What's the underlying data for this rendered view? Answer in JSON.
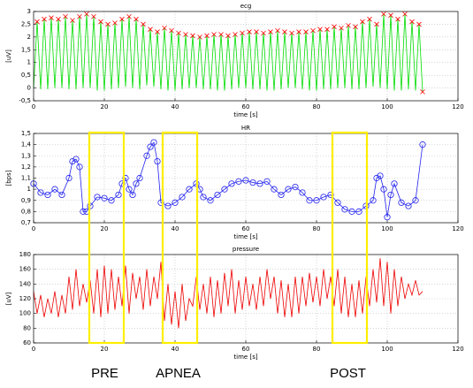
{
  "chart_data": [
    {
      "type": "line",
      "title": "ecg",
      "xlabel": "time [s]",
      "ylabel": "[uV]",
      "grid": true,
      "xlim": [
        0,
        120
      ],
      "xticks": [
        0,
        20,
        40,
        60,
        80,
        100,
        120
      ],
      "ylim": [
        -0.5,
        3
      ],
      "yticks": [
        {
          "value": -0.5,
          "label": "-0,5"
        },
        0,
        {
          "value": 0.5,
          "label": "0,5"
        },
        1,
        {
          "value": 1.5,
          "label": "1,5"
        },
        2,
        {
          "value": 2.5,
          "label": "2,5"
        },
        3
      ],
      "series": [
        {
          "color": "#00dd00",
          "x": [
            0,
            1,
            2,
            3,
            4,
            5,
            6,
            7,
            8,
            9,
            10,
            11,
            12,
            13,
            14,
            15,
            16,
            17,
            18,
            19,
            20,
            21,
            22,
            23,
            24,
            25,
            26,
            27,
            28,
            29,
            30,
            31,
            32,
            33,
            34,
            35,
            36,
            37,
            38,
            39,
            40,
            41,
            42,
            43,
            44,
            45,
            46,
            47,
            48,
            49,
            50,
            51,
            52,
            53,
            54,
            55,
            56,
            57,
            58,
            59,
            60,
            61,
            62,
            63,
            64,
            65,
            66,
            67,
            68,
            69,
            70,
            71,
            72,
            73,
            74,
            75,
            76,
            77,
            78,
            79,
            80,
            81,
            82,
            83,
            84,
            85,
            86,
            87,
            88,
            89,
            90,
            91,
            92,
            93,
            94,
            95,
            96,
            97,
            98,
            99,
            100,
            101,
            102,
            103,
            104,
            105,
            106,
            107,
            108,
            109,
            110
          ],
          "values": [
            0,
            2.6,
            -0.05,
            2.7,
            -0.05,
            2.75,
            0,
            2.7,
            0,
            2.8,
            -0.05,
            2.65,
            -0.05,
            2.8,
            0,
            2.9,
            0,
            2.8,
            -0.1,
            2.6,
            -0.1,
            2.5,
            -0.05,
            2.55,
            0,
            2.7,
            0.05,
            2.8,
            0,
            2.7,
            -0.05,
            2.5,
            0.1,
            2.3,
            0.05,
            2.2,
            -0.05,
            2.35,
            -0.1,
            2.25,
            -0.1,
            2.15,
            -0.05,
            2.1,
            0,
            2.05,
            0,
            2.0,
            -0.05,
            2.05,
            -0.05,
            2.1,
            -0.1,
            2.1,
            -0.1,
            2.05,
            -0.05,
            2.1,
            0,
            2.15,
            0,
            2.2,
            -0.05,
            2.2,
            -0.05,
            2.15,
            -0.1,
            2.2,
            -0.1,
            2.25,
            -0.05,
            2.2,
            0,
            2.15,
            0,
            2.2,
            -0.05,
            2.2,
            -0.1,
            2.25,
            -0.1,
            2.3,
            -0.05,
            2.3,
            -0.05,
            2.4,
            0,
            2.35,
            0,
            2.45,
            -0.05,
            2.4,
            -0.05,
            2.6,
            0,
            2.7,
            0.05,
            2.5,
            0,
            2.9,
            -0.05,
            2.85,
            -0.1,
            2.7,
            -0.1,
            2.9,
            -0.05,
            2.6,
            -0.1,
            2.5,
            -0.15
          ]
        },
        {
          "color": "#ff0000",
          "marker": "x",
          "line": false,
          "x": [
            1,
            3,
            5,
            7,
            9,
            11,
            13,
            15,
            17,
            19,
            21,
            23,
            25,
            27,
            29,
            31,
            33,
            35,
            37,
            39,
            41,
            43,
            45,
            47,
            49,
            51,
            53,
            55,
            57,
            59,
            61,
            63,
            65,
            67,
            69,
            71,
            73,
            75,
            77,
            79,
            81,
            83,
            85,
            87,
            89,
            91,
            93,
            95,
            97,
            99,
            101,
            103,
            105,
            107,
            109,
            110
          ],
          "values": [
            2.6,
            2.7,
            2.75,
            2.7,
            2.8,
            2.65,
            2.8,
            2.9,
            2.8,
            2.6,
            2.5,
            2.55,
            2.7,
            2.8,
            2.7,
            2.5,
            2.3,
            2.2,
            2.35,
            2.25,
            2.15,
            2.1,
            2.05,
            2.0,
            2.05,
            2.1,
            2.1,
            2.05,
            2.1,
            2.15,
            2.2,
            2.2,
            2.15,
            2.2,
            2.25,
            2.2,
            2.15,
            2.2,
            2.2,
            2.25,
            2.3,
            2.3,
            2.4,
            2.35,
            2.45,
            2.4,
            2.6,
            2.7,
            2.5,
            2.9,
            2.85,
            2.7,
            2.9,
            2.6,
            2.5,
            -0.15
          ]
        }
      ]
    },
    {
      "type": "line",
      "title": "HR",
      "xlabel": "time [s]",
      "ylabel": "[bps]",
      "grid": true,
      "xlim": [
        0,
        120
      ],
      "xticks": [
        0,
        20,
        40,
        60,
        80,
        100,
        120
      ],
      "ylim": [
        0.7,
        1.5
      ],
      "yticks": [
        {
          "value": 0.7,
          "label": "0,7"
        },
        {
          "value": 0.8,
          "label": "0,8"
        },
        {
          "value": 0.9,
          "label": "0,9"
        },
        1,
        {
          "value": 1.1,
          "label": "1,1"
        },
        {
          "value": 1.2,
          "label": "1,2"
        },
        {
          "value": 1.3,
          "label": "1,3"
        },
        {
          "value": 1.4,
          "label": "1,4"
        },
        {
          "value": 1.5,
          "label": "1,5"
        }
      ],
      "series": [
        {
          "color": "#2222ee",
          "marker": "o",
          "x": [
            0,
            2,
            4,
            6,
            8,
            10,
            11,
            12,
            13,
            14,
            15,
            16,
            18,
            20,
            22,
            24,
            25,
            26,
            27,
            28,
            29,
            30,
            32,
            33,
            34,
            35,
            36,
            38,
            40,
            42,
            44,
            46,
            47,
            48,
            50,
            52,
            54,
            56,
            58,
            60,
            62,
            64,
            66,
            68,
            70,
            72,
            74,
            76,
            78,
            80,
            82,
            84,
            86,
            88,
            90,
            92,
            94,
            96,
            97,
            98,
            99,
            100,
            101,
            102,
            104,
            106,
            108,
            110
          ],
          "values": [
            1.05,
            0.97,
            0.95,
            1.0,
            0.95,
            1.1,
            1.25,
            1.27,
            1.2,
            0.8,
            0.8,
            0.85,
            0.93,
            0.92,
            0.9,
            0.95,
            1.05,
            1.1,
            1.0,
            0.95,
            1.05,
            1.1,
            1.3,
            1.38,
            1.42,
            1.25,
            0.88,
            0.85,
            0.88,
            0.93,
            1.0,
            1.05,
            1.0,
            0.93,
            0.9,
            0.95,
            1.0,
            1.05,
            1.07,
            1.08,
            1.06,
            1.05,
            1.07,
            1.0,
            0.95,
            1.0,
            1.02,
            0.97,
            0.9,
            0.9,
            0.93,
            0.95,
            0.88,
            0.82,
            0.8,
            0.8,
            0.85,
            0.9,
            1.1,
            1.12,
            1.0,
            0.75,
            0.95,
            1.05,
            0.88,
            0.85,
            0.9,
            1.4
          ]
        }
      ]
    },
    {
      "type": "line",
      "title": "pressure",
      "xlabel": "time [s]",
      "ylabel": "[uV]",
      "grid": true,
      "xlim": [
        0,
        120
      ],
      "xticks": [
        0,
        20,
        40,
        60,
        80,
        100,
        120
      ],
      "ylim": [
        60,
        180
      ],
      "yticks": [
        60,
        80,
        100,
        120,
        140,
        160,
        180
      ],
      "series": [
        {
          "color": "#ee0000",
          "x": [
            0,
            1,
            2,
            3,
            4,
            5,
            6,
            7,
            8,
            9,
            10,
            11,
            12,
            13,
            14,
            15,
            16,
            17,
            18,
            19,
            20,
            21,
            22,
            23,
            24,
            25,
            26,
            27,
            28,
            29,
            30,
            31,
            32,
            33,
            34,
            35,
            36,
            37,
            38,
            39,
            40,
            41,
            42,
            43,
            44,
            45,
            46,
            47,
            48,
            49,
            50,
            51,
            52,
            53,
            54,
            55,
            56,
            57,
            58,
            59,
            60,
            61,
            62,
            63,
            64,
            65,
            66,
            67,
            68,
            69,
            70,
            71,
            72,
            73,
            74,
            75,
            76,
            77,
            78,
            79,
            80,
            81,
            82,
            83,
            84,
            85,
            86,
            87,
            88,
            89,
            90,
            91,
            92,
            93,
            94,
            95,
            96,
            97,
            98,
            99,
            100,
            101,
            102,
            103,
            104,
            105,
            106,
            107,
            108,
            109,
            110
          ],
          "values": [
            130,
            100,
            125,
            95,
            120,
            100,
            130,
            95,
            125,
            100,
            150,
            105,
            160,
            110,
            140,
            115,
            145,
            100,
            160,
            95,
            165,
            100,
            160,
            105,
            150,
            110,
            165,
            100,
            155,
            120,
            150,
            105,
            160,
            110,
            150,
            120,
            170,
            90,
            140,
            85,
            130,
            80,
            140,
            90,
            120,
            110,
            150,
            105,
            140,
            100,
            150,
            95,
            145,
            100,
            155,
            110,
            160,
            100,
            145,
            105,
            150,
            110,
            140,
            105,
            150,
            110,
            160,
            120,
            150,
            100,
            145,
            95,
            140,
            95,
            150,
            100,
            150,
            110,
            155,
            115,
            150,
            110,
            160,
            120,
            150,
            110,
            160,
            100,
            150,
            95,
            140,
            95,
            145,
            100,
            150,
            110,
            160,
            115,
            175,
            110,
            170,
            100,
            160,
            110,
            150,
            120,
            140,
            125,
            145,
            125,
            130
          ]
        }
      ]
    }
  ],
  "annotations": [
    {
      "label": "PRE",
      "start": 15.75,
      "end": 25.5
    },
    {
      "label": "APNEA",
      "start": 36.5,
      "end": 46.25
    },
    {
      "label": "POST",
      "start": 84.5,
      "end": 94.25
    }
  ]
}
